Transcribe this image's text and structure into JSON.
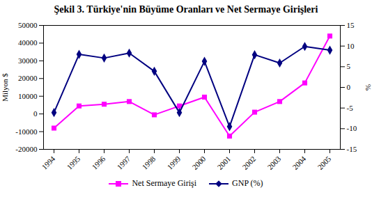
{
  "chart_data": {
    "type": "line",
    "title": "Şekil 3. Türkiye'nin Büyüme Oranları ve Net Sermaye Girişleri",
    "categories": [
      "1994",
      "1995",
      "1996",
      "1997",
      "1998",
      "1999",
      "2000",
      "2001",
      "2002",
      "2003",
      "2004",
      "2005"
    ],
    "y_label": "Milyon $",
    "y2_label": "%",
    "ylim": [
      -20000,
      50000
    ],
    "yticks": [
      -20000,
      -10000,
      0,
      10000,
      20000,
      30000,
      40000,
      50000
    ],
    "y2lim": [
      -15,
      15
    ],
    "y2ticks": [
      -15,
      -10,
      -5,
      0,
      5,
      10,
      15
    ],
    "legend": "bottom",
    "grid": false,
    "series": [
      {
        "name": "Net Sermaye Girişi",
        "color": "#ff00ff",
        "marker": "square",
        "values": [
          -8000,
          4500,
          5500,
          7000,
          -500,
          4500,
          9500,
          -12500,
          1000,
          7000,
          17500,
          44000
        ]
      },
      {
        "name": "GNP (%)",
        "color": "#000080",
        "marker": "diamond",
        "axis": "y2",
        "values": [
          -6.1,
          8.0,
          7.1,
          8.3,
          3.9,
          -6.1,
          6.3,
          -9.5,
          7.9,
          5.9,
          9.9,
          9.0
        ]
      }
    ]
  }
}
